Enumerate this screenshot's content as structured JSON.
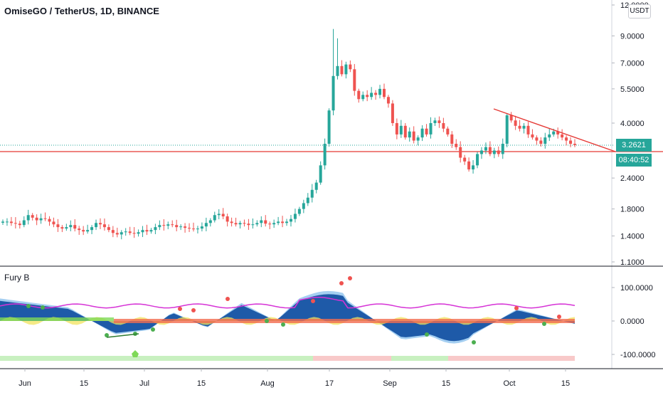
{
  "header": {
    "symbol_title": "OmiseGO / TetherUS, 1D, BINANCE",
    "currency_button": "USDT"
  },
  "indicator": {
    "title": "Fury B"
  },
  "price_axis": {
    "labels": [
      "12.0000",
      "9.0000",
      "7.0000",
      "5.5000",
      "4.0000",
      "2.4000",
      "1.8000",
      "1.4000",
      "1.1000"
    ]
  },
  "indicator_axis": {
    "labels": [
      "100.0000",
      "0.0000",
      "-100.0000"
    ]
  },
  "time_axis": {
    "labels": [
      "Jun",
      "15",
      "Jul",
      "15",
      "Aug",
      "17",
      "Sep",
      "15",
      "Oct",
      "15"
    ]
  },
  "tags": {
    "last_price": "3.2621",
    "countdown": "08:40:52"
  },
  "colors": {
    "bull": "#26a69a",
    "bear": "#ef5350",
    "red_line": "#e53935",
    "dotted": "#26a69a",
    "indicator_fill": "#1e5aa8",
    "magenta": "#d633d6"
  },
  "chart_data": {
    "type": "candlestick",
    "title": "OmiseGO / TetherUS, 1D, BINANCE",
    "currency": "USDT",
    "y_scale": "log",
    "ylim": [
      1.1,
      12.0
    ],
    "x_range": [
      "Jun",
      "Oct 15"
    ],
    "last_price": 3.2621,
    "horizontal_support": 3.0,
    "close_series": [
      1.6,
      1.6,
      1.58,
      1.57,
      1.55,
      1.62,
      1.7,
      1.66,
      1.62,
      1.65,
      1.64,
      1.6,
      1.56,
      1.52,
      1.5,
      1.52,
      1.55,
      1.5,
      1.48,
      1.46,
      1.48,
      1.52,
      1.58,
      1.56,
      1.52,
      1.48,
      1.44,
      1.42,
      1.45,
      1.46,
      1.44,
      1.43,
      1.45,
      1.48,
      1.46,
      1.48,
      1.52,
      1.55,
      1.54,
      1.56,
      1.55,
      1.52,
      1.53,
      1.51,
      1.5,
      1.49,
      1.5,
      1.53,
      1.58,
      1.62,
      1.7,
      1.72,
      1.68,
      1.6,
      1.58,
      1.56,
      1.58,
      1.57,
      1.55,
      1.56,
      1.58,
      1.62,
      1.57,
      1.56,
      1.58,
      1.6,
      1.58,
      1.6,
      1.64,
      1.72,
      1.8,
      1.9,
      2.0,
      2.15,
      2.3,
      2.7,
      3.3,
      4.5,
      6.2,
      6.8,
      6.3,
      6.9,
      6.6,
      5.4,
      5.0,
      5.2,
      5.1,
      5.3,
      5.2,
      5.5,
      5.1,
      4.8,
      4.0,
      3.6,
      3.9,
      3.5,
      3.7,
      3.4,
      3.5,
      3.8,
      3.6,
      4.0,
      4.1,
      4.0,
      3.8,
      3.6,
      3.3,
      3.2,
      2.9,
      2.8,
      2.6,
      2.7,
      3.0,
      3.1,
      3.2,
      3.0,
      3.1,
      3.0,
      3.3,
      4.3,
      4.1,
      3.9,
      3.8,
      3.9,
      3.6,
      3.5,
      3.4,
      3.3,
      3.5,
      3.6,
      3.7,
      3.6,
      3.5,
      3.4,
      3.3,
      3.2621
    ],
    "trendline": {
      "from_date": "Sep 29",
      "from_price": 4.5,
      "to_date": "Oct 20",
      "to_price": 3.0
    },
    "indicator": {
      "name": "Fury B",
      "ylim": [
        -150,
        150
      ],
      "ticks": [
        100,
        0,
        -100
      ]
    }
  }
}
